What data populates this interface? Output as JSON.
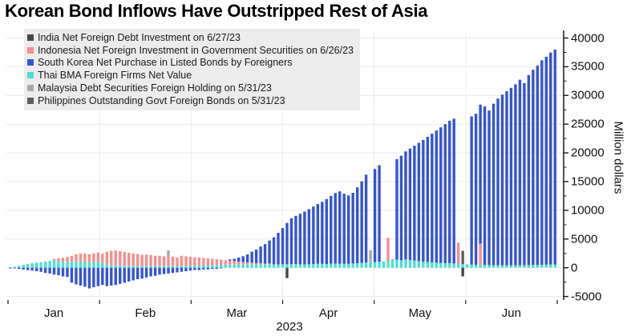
{
  "chart_data": {
    "type": "bar",
    "title": "Korean Bond Inflows Have Outstripped Rest of Asia",
    "ylabel": "Million dollars",
    "xlabel": "2023",
    "ylim": [
      -5000,
      40000
    ],
    "ytick_step": 5000,
    "y_minor_step": 2500,
    "grid": true,
    "legend_position": "top-left",
    "months": [
      "Jan",
      "Feb",
      "Mar",
      "Apr",
      "May",
      "Jun"
    ],
    "n_days": 125,
    "legend": [
      {
        "key": "india",
        "label": "India Net Foreign Debt Investment on 6/27/23",
        "color": "#464646"
      },
      {
        "key": "indonesia",
        "label": "Indonesia Net Foreign Investment in Government Securities on 6/26/23",
        "color": "#f48f8f"
      },
      {
        "key": "korea",
        "label": "South Korea Net Purchase in Listed Bonds by Foreigners",
        "color": "#3454d5"
      },
      {
        "key": "thai",
        "label": "Thai BMA Foreign Firms Net Value",
        "color": "#4be0d0"
      },
      {
        "key": "malaysia",
        "label": "Malaysia Debt Securities Foreign Holding on 5/31/23",
        "color": "#a8a8a8"
      },
      {
        "key": "philippines",
        "label": "Philippines Outstanding Govt Foreign Bonds on 5/31/23",
        "color": "#5e5e5e"
      }
    ],
    "series": [
      {
        "key": "thai",
        "name": "Thai BMA Foreign Firms Net Value",
        "color": "#4be0d0",
        "values": [
          100,
          200,
          350,
          500,
          650,
          800,
          900,
          1000,
          1100,
          1200,
          1250,
          1150,
          1050,
          1000,
          950,
          1050,
          1100,
          1000,
          950,
          1000,
          1050,
          950,
          500,
          450,
          400,
          380,
          350,
          330,
          300,
          300,
          280,
          300,
          320,
          300,
          280,
          300,
          320,
          340,
          300,
          280,
          300,
          320,
          350,
          380,
          400,
          420,
          450,
          480,
          500,
          520,
          540,
          560,
          580,
          600,
          620,
          600,
          580,
          600,
          620,
          640,
          600,
          580,
          600,
          600,
          620,
          640,
          600,
          580,
          600,
          650,
          700,
          680,
          660,
          700,
          720,
          700,
          680,
          700,
          750,
          800,
          850,
          900,
          950,
          1000,
          1050,
          1100,
          1200,
          1500,
          1400,
          1300,
          1450,
          1350,
          1250,
          1150,
          1050,
          1000,
          950,
          900,
          850,
          800,
          800,
          750,
          700,
          650,
          600,
          550,
          520,
          500,
          480,
          470,
          460,
          450,
          440,
          430,
          420,
          430,
          440,
          450,
          460,
          480,
          500,
          520,
          540,
          560,
          580
        ]
      },
      {
        "key": "indonesia",
        "name": "Indonesia Net Foreign Investment in Government Securities on 6/26/23",
        "color": "#f48f8f",
        "values": [
          0,
          0,
          0,
          0,
          0,
          0,
          0,
          0,
          0,
          0,
          300,
          500,
          700,
          900,
          1100,
          1300,
          1400,
          1500,
          1400,
          1500,
          1600,
          1500,
          2300,
          2500,
          2600,
          2500,
          2400,
          2300,
          2200,
          2100,
          2000,
          2000,
          1900,
          1800,
          1800,
          1700,
          1700,
          1600,
          1500,
          1800,
          1700,
          1600,
          1500,
          1400,
          1300,
          1200,
          1100,
          1000,
          900,
          800,
          700,
          600,
          500,
          400,
          300,
          300,
          200,
          200,
          100,
          100,
          0,
          0,
          0,
          0,
          0,
          0,
          0,
          0,
          0,
          0,
          0,
          0,
          0,
          0,
          0,
          0,
          0,
          0,
          0,
          0,
          0,
          0,
          0,
          0,
          0,
          0,
          4000,
          0,
          0,
          0,
          0,
          0,
          0,
          0,
          0,
          0,
          0,
          0,
          0,
          0,
          0,
          0,
          3700,
          0,
          0,
          0,
          0,
          3700,
          0,
          0,
          0,
          0,
          0,
          0,
          0,
          0,
          0,
          0,
          0,
          0,
          0,
          0,
          0,
          0,
          0
        ]
      },
      {
        "key": "korea",
        "name": "South Korea Net Purchase in Listed Bonds by Foreigners",
        "color": "#3454d5",
        "values": [
          -50,
          -100,
          -200,
          -300,
          -400,
          -500,
          -600,
          -700,
          -900,
          -1000,
          -1200,
          -1300,
          -1500,
          -1600,
          -2600,
          -2900,
          -3100,
          -3300,
          -3600,
          -3400,
          -3200,
          -3000,
          -3200,
          -3100,
          -3000,
          -2800,
          -2600,
          -2400,
          -2200,
          -2000,
          -1900,
          -1700,
          -1500,
          -1400,
          -1200,
          -1100,
          -1000,
          -900,
          -800,
          -700,
          -600,
          -500,
          -400,
          -400,
          -300,
          -300,
          -200,
          -200,
          -100,
          0,
          200,
          400,
          700,
          1000,
          1400,
          1900,
          2400,
          2900,
          3400,
          4000,
          4700,
          5500,
          6300,
          7200,
          8000,
          8400,
          8800,
          9200,
          9600,
          10000,
          10400,
          10800,
          11300,
          11800,
          12300,
          12600,
          12200,
          11900,
          12300,
          13200,
          14200,
          15300,
          0,
          16200,
          16800,
          0,
          0,
          0,
          17500,
          18200,
          18800,
          19400,
          20000,
          20600,
          21200,
          21800,
          22400,
          23000,
          23600,
          24200,
          24800,
          25200,
          0,
          0,
          0,
          25800,
          26300,
          24200,
          27600,
          26900,
          28100,
          29000,
          29700,
          30300,
          30900,
          31500,
          32300,
          31700,
          33100,
          34000,
          34700,
          35600,
          36200,
          36900,
          37400
        ]
      },
      {
        "key": "india",
        "name": "India Net Foreign Debt Investment on 6/27/23",
        "color": "#464646",
        "sparse": true,
        "points": [
          {
            "i": 63,
            "v": -1800
          },
          {
            "i": 103,
            "v": -1500
          }
        ]
      },
      {
        "key": "malaysia",
        "name": "Malaysia Debt Securities Foreign Holding on 5/31/23",
        "color": "#a8a8a8",
        "sparse": true,
        "points": [
          {
            "i": 36,
            "v": 1000
          },
          {
            "i": 82,
            "v": 2100
          }
        ]
      },
      {
        "key": "philippines",
        "name": "Philippines Outstanding Govt Foreign Bonds on 5/31/23",
        "color": "#5e5e5e",
        "sparse": true,
        "points": [
          {
            "i": 103,
            "v": 2300
          }
        ]
      }
    ],
    "yticks": [
      -5000,
      0,
      5000,
      10000,
      15000,
      20000,
      25000,
      30000,
      35000,
      40000
    ]
  }
}
